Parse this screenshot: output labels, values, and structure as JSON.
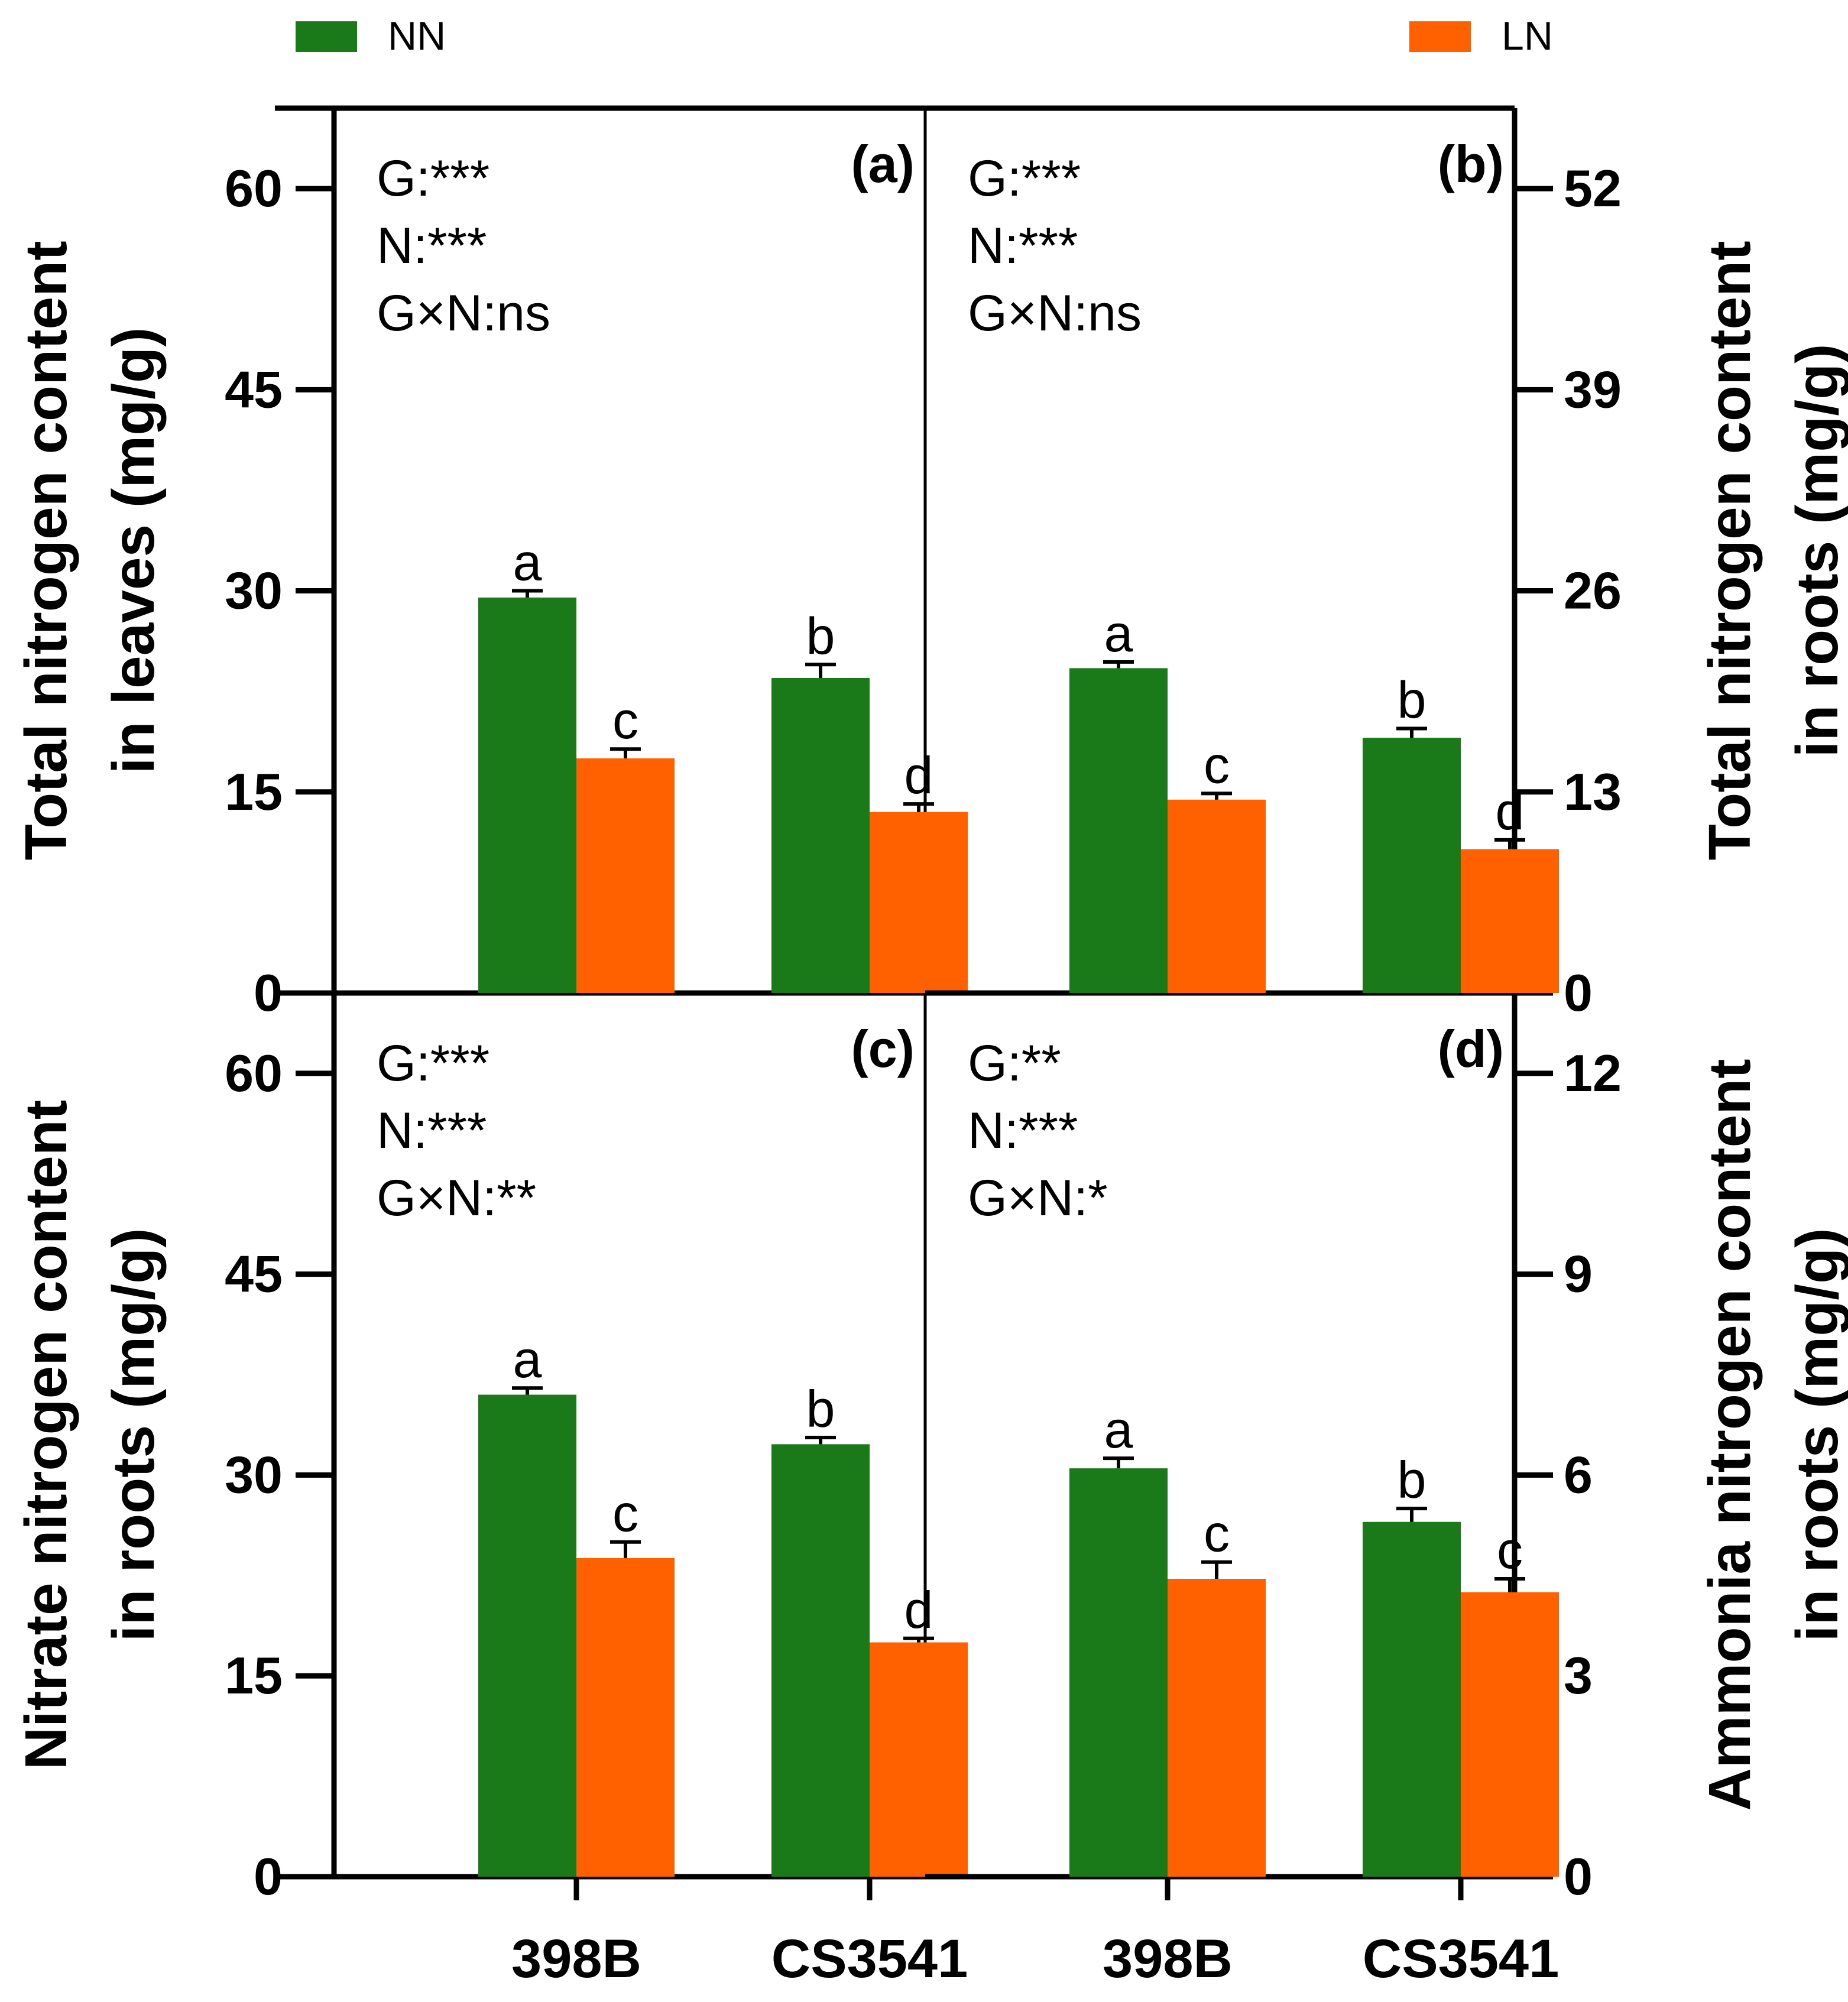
{
  "legend": {
    "items": [
      {
        "label": "NN",
        "color": "#1a7a1a"
      },
      {
        "label": "LN",
        "color": "#ff6000"
      }
    ]
  },
  "colors": {
    "NN": "#1a7a1a",
    "LN": "#ff6000",
    "axis": "#000000",
    "text": "#000000"
  },
  "chart_data": [
    {
      "type": "bar",
      "panel": "(a)",
      "categories": [
        "398B",
        "CS3541"
      ],
      "series": [
        {
          "name": "NN",
          "values": [
            29.5,
            23.5
          ],
          "errors": [
            0.5,
            1.0
          ],
          "letters": [
            "a",
            "b"
          ]
        },
        {
          "name": "LN",
          "values": [
            17.5,
            13.5
          ],
          "errors": [
            0.7,
            0.6
          ],
          "letters": [
            "c",
            "d"
          ]
        }
      ],
      "ylim": [
        0,
        66
      ],
      "yticks": [
        0,
        15,
        30,
        45,
        60
      ],
      "ylabel_lines": [
        "Total nitrogen content",
        "in leaves (mg/g)"
      ],
      "stats": [
        "G:***",
        "N:***",
        "G×N:ns"
      ],
      "axis_side": "left",
      "show_categories": false
    },
    {
      "type": "bar",
      "panel": "(b)",
      "categories": [
        "398B",
        "CS3541"
      ],
      "series": [
        {
          "name": "NN",
          "values": [
            21.0,
            16.5
          ],
          "errors": [
            0.4,
            0.6
          ],
          "letters": [
            "a",
            "b"
          ]
        },
        {
          "name": "LN",
          "values": [
            12.5,
            9.3
          ],
          "errors": [
            0.4,
            0.6
          ],
          "letters": [
            "c",
            "d"
          ]
        }
      ],
      "ylim": [
        0,
        57.2
      ],
      "yticks": [
        0,
        13,
        26,
        39,
        52
      ],
      "ylabel_lines": [
        "Total nitrogen content",
        "in roots (mg/g)"
      ],
      "stats": [
        "G:***",
        "N:***",
        "G×N:ns"
      ],
      "axis_side": "right",
      "show_categories": false
    },
    {
      "type": "bar",
      "panel": "(c)",
      "categories": [
        "398B",
        "CS3541"
      ],
      "series": [
        {
          "name": "NN",
          "values": [
            36.0,
            32.3
          ],
          "errors": [
            0.5,
            0.5
          ],
          "letters": [
            "a",
            "b"
          ]
        },
        {
          "name": "LN",
          "values": [
            23.8,
            17.5
          ],
          "errors": [
            1.2,
            0.3
          ],
          "letters": [
            "c",
            "d"
          ]
        }
      ],
      "ylim": [
        0,
        66
      ],
      "yticks": [
        0,
        15,
        30,
        45,
        60
      ],
      "ylabel_lines": [
        "Nitrate nitrogen content",
        "in roots (mg/g)"
      ],
      "stats": [
        "G:***",
        "N:***",
        "G×N:**"
      ],
      "axis_side": "left",
      "show_categories": true
    },
    {
      "type": "bar",
      "panel": "(d)",
      "categories": [
        "398B",
        "CS3541"
      ],
      "series": [
        {
          "name": "NN",
          "values": [
            6.1,
            5.3
          ],
          "errors": [
            0.15,
            0.2
          ],
          "letters": [
            "a",
            "b"
          ]
        },
        {
          "name": "LN",
          "values": [
            4.45,
            4.25
          ],
          "errors": [
            0.25,
            0.2
          ],
          "letters": [
            "c",
            "c"
          ]
        }
      ],
      "ylim": [
        0,
        13.2
      ],
      "yticks": [
        0,
        3,
        6,
        9,
        12
      ],
      "ylabel_lines": [
        "Ammonia nitrogen content",
        "in roots (mg/g)"
      ],
      "stats": [
        "G:**",
        "N:***",
        "G×N:*"
      ],
      "axis_side": "right",
      "show_categories": true
    }
  ]
}
